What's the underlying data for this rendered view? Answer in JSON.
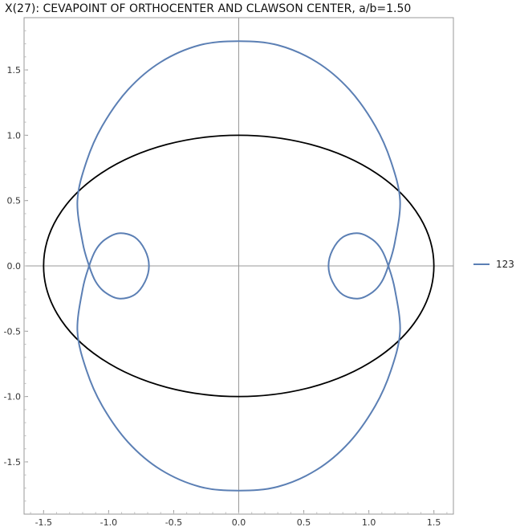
{
  "chart_data": {
    "type": "line",
    "title": "X(27): CEVAPOINT OF ORTHOCENTER AND CLAWSON CENTER, a/b=1.50",
    "xlabel": "",
    "ylabel": "",
    "xlim": [
      -1.65,
      1.65
    ],
    "ylim": [
      -1.9,
      1.9
    ],
    "x_ticks": [
      -1.5,
      -1.0,
      -0.5,
      0.0,
      0.5,
      1.0,
      1.5
    ],
    "x_tick_labels": [
      "-1.5",
      "-1.0",
      "-0.5",
      "0.0",
      "0.5",
      "1.0",
      "1.5"
    ],
    "y_ticks": [
      -1.5,
      -1.0,
      -0.5,
      0.0,
      0.5,
      1.0,
      1.5
    ],
    "y_tick_labels": [
      "-1.5",
      "-1.0",
      "-0.5",
      "0.0",
      "0.5",
      "1.0",
      "1.5"
    ],
    "grid": false,
    "axes_through_origin": true,
    "legend_position": "right",
    "series": [
      {
        "name": "",
        "color": "#000000",
        "kind": "ellipse",
        "center": [
          0,
          0
        ],
        "semi_axes": [
          1.5,
          1.0
        ]
      },
      {
        "name": "123",
        "color": "#5b7fb4",
        "kind": "curve",
        "points": [
          [
            0.0,
            1.72
          ],
          [
            0.3,
            1.69
          ],
          [
            0.6,
            1.56
          ],
          [
            0.85,
            1.35
          ],
          [
            1.05,
            1.07
          ],
          [
            1.17,
            0.8
          ],
          [
            1.24,
            0.5
          ],
          [
            1.2,
            0.18
          ],
          [
            1.15,
            0.0
          ],
          [
            1.1,
            -0.12
          ],
          [
            1.03,
            -0.2
          ],
          [
            0.92,
            -0.25
          ],
          [
            0.8,
            -0.22
          ],
          [
            0.72,
            -0.12
          ],
          [
            0.69,
            0.0
          ],
          [
            0.72,
            0.12
          ],
          [
            0.8,
            0.22
          ],
          [
            0.92,
            0.25
          ],
          [
            1.03,
            0.2
          ],
          [
            1.1,
            0.12
          ],
          [
            1.15,
            0.0
          ],
          [
            1.2,
            -0.18
          ],
          [
            1.24,
            -0.5
          ],
          [
            1.17,
            -0.8
          ],
          [
            1.05,
            -1.07
          ],
          [
            0.85,
            -1.35
          ],
          [
            0.6,
            -1.56
          ],
          [
            0.3,
            -1.69
          ],
          [
            0.0,
            -1.72
          ],
          [
            -0.3,
            -1.69
          ],
          [
            -0.6,
            -1.56
          ],
          [
            -0.85,
            -1.35
          ],
          [
            -1.05,
            -1.07
          ],
          [
            -1.17,
            -0.8
          ],
          [
            -1.24,
            -0.5
          ],
          [
            -1.2,
            -0.18
          ],
          [
            -1.15,
            0.0
          ],
          [
            -1.1,
            0.12
          ],
          [
            -1.03,
            0.2
          ],
          [
            -0.92,
            0.25
          ],
          [
            -0.8,
            0.22
          ],
          [
            -0.72,
            0.12
          ],
          [
            -0.69,
            0.0
          ],
          [
            -0.72,
            -0.12
          ],
          [
            -0.8,
            -0.22
          ],
          [
            -0.92,
            -0.25
          ],
          [
            -1.03,
            -0.2
          ],
          [
            -1.1,
            -0.12
          ],
          [
            -1.15,
            0.0
          ],
          [
            -1.2,
            0.18
          ],
          [
            -1.24,
            0.5
          ],
          [
            -1.17,
            0.8
          ],
          [
            -1.05,
            1.07
          ],
          [
            -0.85,
            1.35
          ],
          [
            -0.6,
            1.56
          ],
          [
            -0.3,
            1.69
          ],
          [
            0.0,
            1.72
          ]
        ]
      }
    ]
  }
}
